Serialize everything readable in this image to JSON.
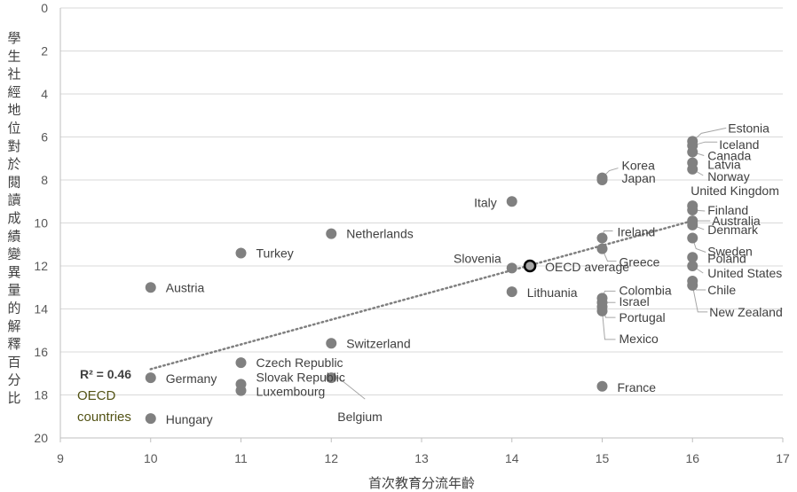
{
  "chart_data": {
    "type": "scatter",
    "xlabel": "首次教育分流年齡",
    "ylabel": "學生社經地位對於閱讀成績變異量的解釋百分比",
    "xlim": [
      9,
      17
    ],
    "ylim": [
      0,
      20
    ],
    "y_reversed": true,
    "x_ticks": [
      9,
      10,
      11,
      12,
      13,
      14,
      15,
      16,
      17
    ],
    "y_ticks": [
      0,
      2,
      4,
      6,
      8,
      10,
      12,
      14,
      16,
      18,
      20
    ],
    "grid": "horizontal",
    "points": [
      {
        "label": "Austria",
        "x": 10,
        "y": 13.0
      },
      {
        "label": "Germany",
        "x": 10,
        "y": 17.2
      },
      {
        "label": "Hungary",
        "x": 10,
        "y": 19.1
      },
      {
        "label": "Turkey",
        "x": 11,
        "y": 11.4
      },
      {
        "label": "Czech Republic",
        "x": 11,
        "y": 16.5
      },
      {
        "label": "Slovak Republic",
        "x": 11,
        "y": 17.5
      },
      {
        "label": "Luxembourg",
        "x": 11,
        "y": 17.8
      },
      {
        "label": "Netherlands",
        "x": 12,
        "y": 10.5
      },
      {
        "label": "Switzerland",
        "x": 12,
        "y": 15.6
      },
      {
        "label": "Belgium",
        "x": 12,
        "y": 17.2
      },
      {
        "label": "Italy",
        "x": 14,
        "y": 9.0
      },
      {
        "label": "Slovenia",
        "x": 14,
        "y": 12.1
      },
      {
        "label": "Lithuania",
        "x": 14,
        "y": 13.2
      },
      {
        "label": "Korea",
        "x": 15,
        "y": 7.9
      },
      {
        "label": "Japan",
        "x": 15,
        "y": 8.0
      },
      {
        "label": "Ireland",
        "x": 15,
        "y": 10.7
      },
      {
        "label": "Greece",
        "x": 15,
        "y": 11.2
      },
      {
        "label": "Colombia",
        "x": 15,
        "y": 13.5
      },
      {
        "label": "Israel",
        "x": 15,
        "y": 13.7
      },
      {
        "label": "Portugal",
        "x": 15,
        "y": 13.9
      },
      {
        "label": "Mexico",
        "x": 15,
        "y": 14.1
      },
      {
        "label": "France",
        "x": 15,
        "y": 17.6
      },
      {
        "label": "Estonia",
        "x": 16,
        "y": 6.2
      },
      {
        "label": "Iceland",
        "x": 16,
        "y": 6.4
      },
      {
        "label": "Canada",
        "x": 16,
        "y": 6.7
      },
      {
        "label": "Latvia",
        "x": 16,
        "y": 7.2
      },
      {
        "label": "Norway",
        "x": 16,
        "y": 7.5
      },
      {
        "label": "United Kingdom",
        "x": 16,
        "y": 9.2
      },
      {
        "label": "Finland",
        "x": 16,
        "y": 9.4
      },
      {
        "label": "Australia",
        "x": 16,
        "y": 9.9
      },
      {
        "label": "Denmark",
        "x": 16,
        "y": 10.1
      },
      {
        "label": "Sweden",
        "x": 16,
        "y": 10.7
      },
      {
        "label": "Poland",
        "x": 16,
        "y": 11.6
      },
      {
        "label": "United States",
        "x": 16,
        "y": 12.0
      },
      {
        "label": "Chile",
        "x": 16,
        "y": 12.7
      },
      {
        "label": "New Zealand",
        "x": 16,
        "y": 12.9
      }
    ],
    "average": {
      "label": "OECD average",
      "x": 14.2,
      "y": 12.0
    },
    "trendline": {
      "x": [
        10,
        16
      ],
      "y": [
        16.8,
        9.9
      ]
    },
    "r_squared_label": "R² = 0.46",
    "group_note": "OECD countries"
  }
}
